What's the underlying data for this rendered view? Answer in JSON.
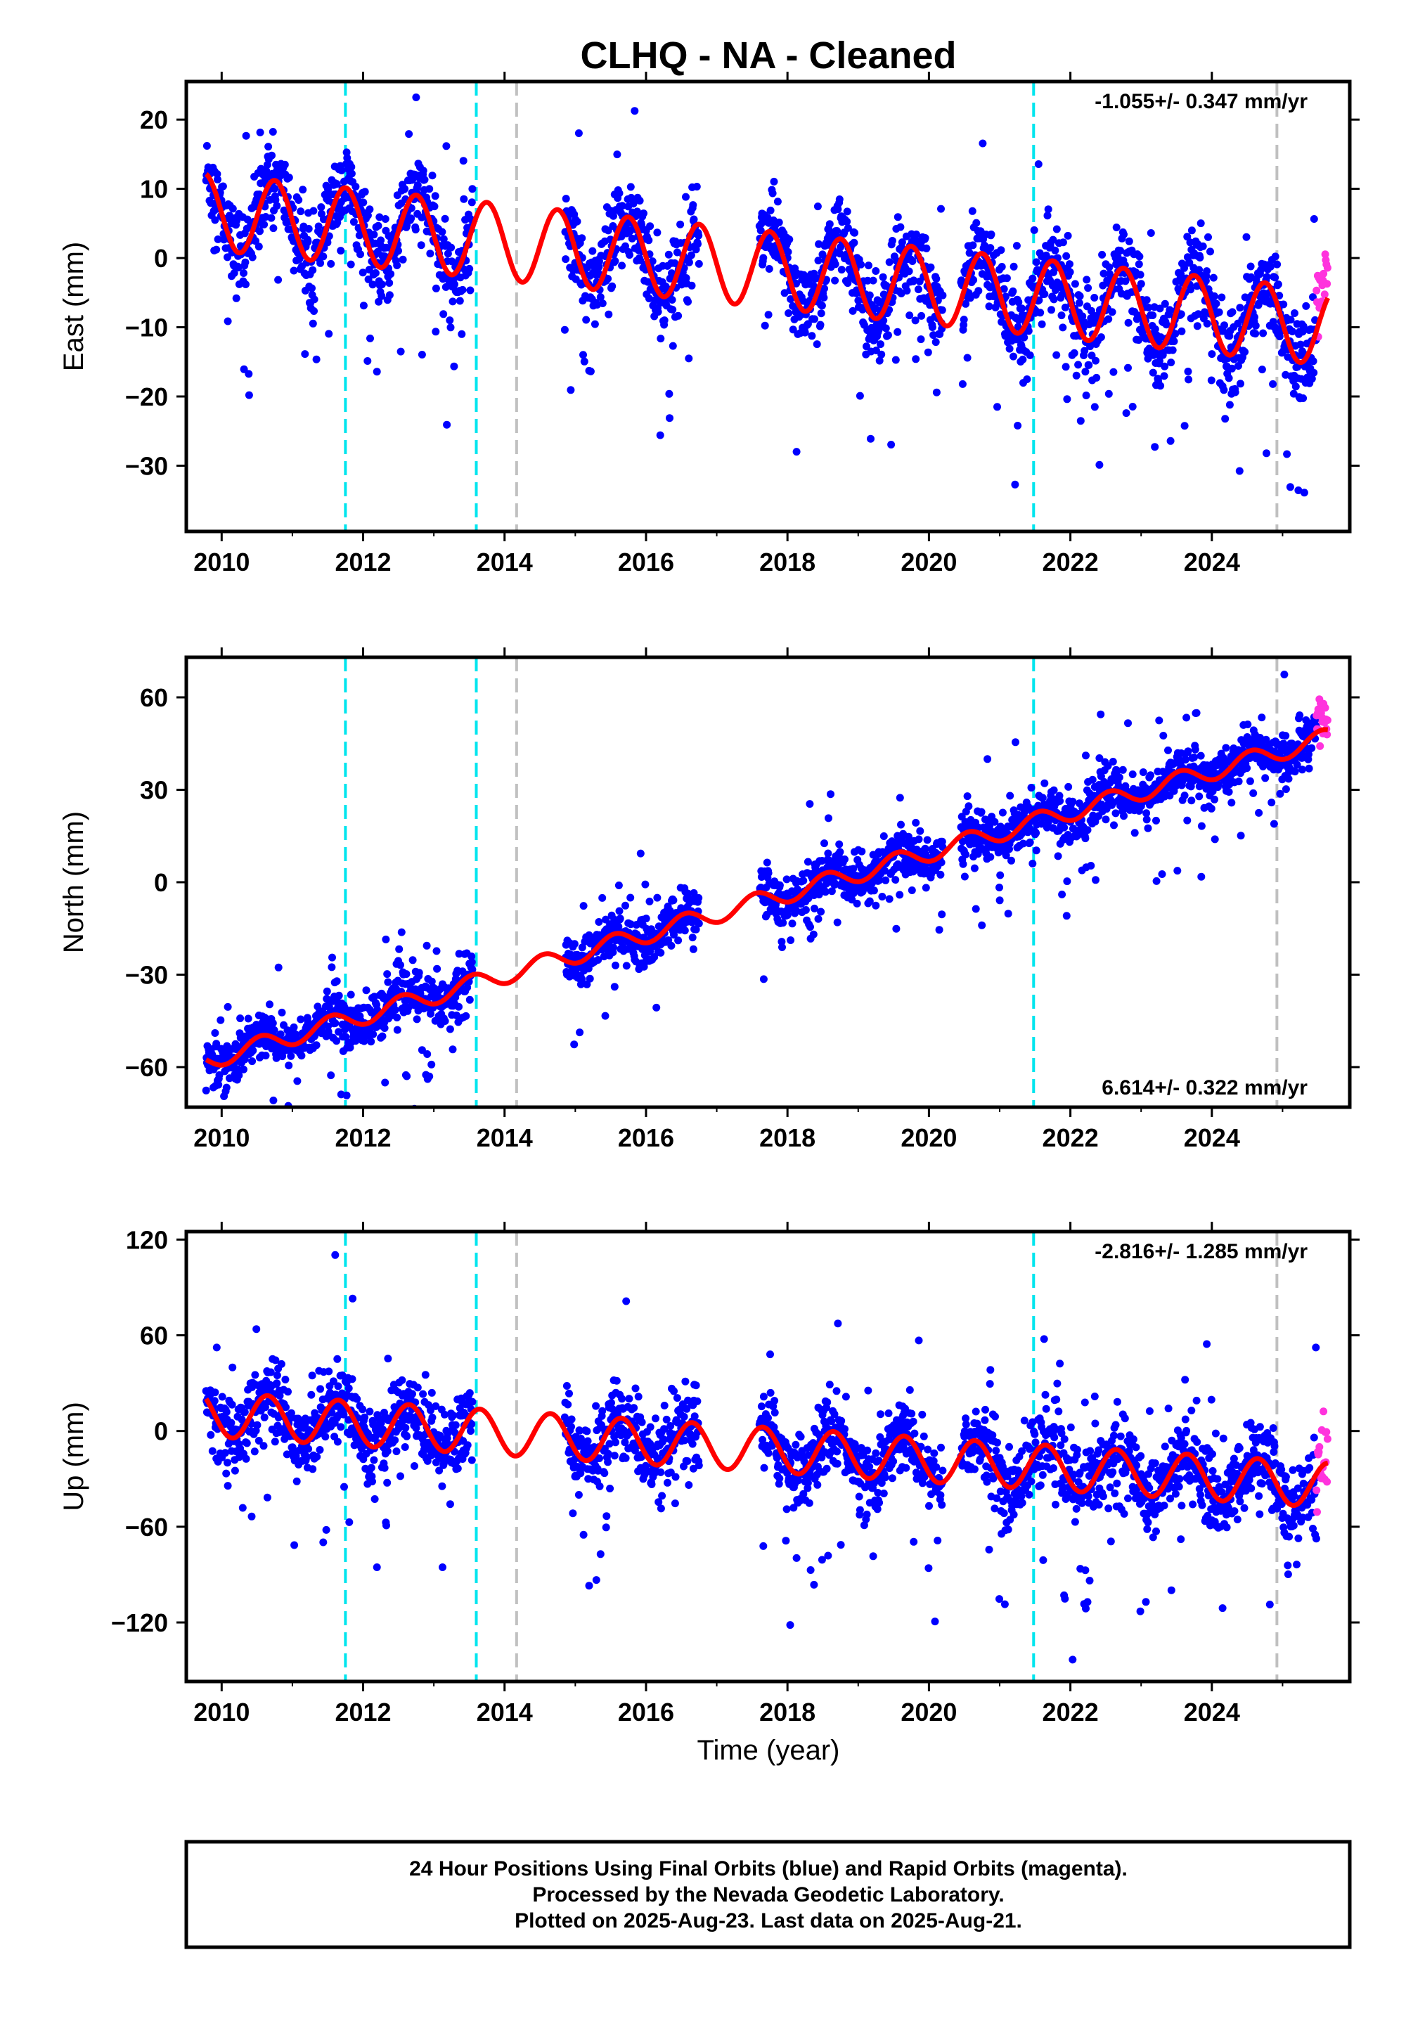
{
  "title": "CLHQ  - NA - Cleaned",
  "xlabel": "Time (year)",
  "colors": {
    "final_points": "#0000ff",
    "rapid_points": "#ff33dd",
    "model_line": "#ff0000",
    "equipment_change": "#00e5ee",
    "other_event": "#c0c0c0"
  },
  "footer": {
    "line1": "24 Hour Positions Using Final Orbits (blue) and Rapid Orbits (magenta).",
    "line2": "Processed by the Nevada Geodetic Laboratory.",
    "line3": "Plotted on 2025-Aug-23. Last data on 2025-Aug-21."
  },
  "chart_data": [
    {
      "type": "scatter",
      "component": "east",
      "ylabel": "East (mm)",
      "rate_label": "-1.055+/- 0.347 mm/yr",
      "rate_position": "top-right",
      "xlim": [
        2009.5,
        2025.95
      ],
      "ylim": [
        -39.5,
        25.5
      ],
      "xticks": [
        2010,
        2012,
        2014,
        2016,
        2018,
        2020,
        2022,
        2024
      ],
      "yticks": [
        20,
        10,
        0,
        -10,
        -20,
        -30
      ],
      "ytick_labels": [
        "20",
        "10",
        "0",
        "−10",
        "−20",
        "−30"
      ],
      "model": {
        "offset": 6.5,
        "rate": -1.055,
        "amplitude": 5.5,
        "phase_year": 0.75,
        "ref_year": 2010
      },
      "spread": 3.0,
      "gaps": [
        [
          2013.55,
          2014.3
        ],
        [
          2014.3,
          2014.85
        ],
        [
          2016.75,
          2017.6
        ],
        [
          2020.2,
          2020.45
        ]
      ]
    },
    {
      "type": "scatter",
      "component": "north",
      "ylabel": "North (mm)",
      "rate_label": "6.614+/- 0.322 mm/yr",
      "rate_position": "bottom-right",
      "xlim": [
        2009.5,
        2025.95
      ],
      "ylim": [
        -73,
        73
      ],
      "xticks": [
        2010,
        2012,
        2014,
        2016,
        2018,
        2020,
        2022,
        2024
      ],
      "yticks": [
        60,
        30,
        0,
        -30,
        -60
      ],
      "ytick_labels": [
        "60",
        "30",
        "0",
        "−30",
        "−60"
      ],
      "model": {
        "offset": -56.5,
        "rate": 6.614,
        "amplitude": 3.0,
        "phase_year": 0.55,
        "ref_year": 2010
      },
      "spread": 4.0,
      "gaps": [
        [
          2013.55,
          2014.3
        ],
        [
          2014.3,
          2014.85
        ],
        [
          2016.75,
          2017.6
        ],
        [
          2020.2,
          2020.45
        ]
      ]
    },
    {
      "type": "scatter",
      "component": "up",
      "ylabel": "Up (mm)",
      "rate_label": "-2.816+/- 1.285 mm/yr",
      "rate_position": "top-right",
      "xlim": [
        2009.5,
        2025.95
      ],
      "ylim": [
        -157,
        125
      ],
      "xticks": [
        2010,
        2012,
        2014,
        2016,
        2018,
        2020,
        2022,
        2024
      ],
      "yticks": [
        120,
        60,
        0,
        -60,
        -120
      ],
      "ytick_labels": [
        "120",
        "60",
        "0",
        "−60",
        "−120"
      ],
      "model": {
        "offset": 10,
        "rate": -2.816,
        "amplitude": 14,
        "phase_year": 0.65,
        "ref_year": 2010
      },
      "spread": 12.0,
      "gaps": [
        [
          2013.55,
          2014.3
        ],
        [
          2014.3,
          2014.85
        ],
        [
          2016.75,
          2017.6
        ],
        [
          2020.2,
          2020.45
        ]
      ]
    }
  ],
  "events": [
    {
      "year": 2011.75,
      "kind": "equipment_change"
    },
    {
      "year": 2013.6,
      "kind": "equipment_change"
    },
    {
      "year": 2014.17,
      "kind": "other_event"
    },
    {
      "year": 2021.48,
      "kind": "equipment_change"
    },
    {
      "year": 2024.92,
      "kind": "other_event"
    }
  ],
  "data_span": {
    "start": 2009.78,
    "end": 2025.64,
    "rapid_start": 2025.48
  }
}
